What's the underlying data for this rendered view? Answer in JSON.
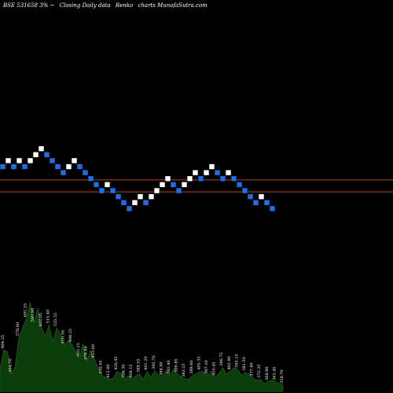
{
  "header": {
    "title": "BSE 531658 3%",
    "separator": "~",
    "subtitle": "Closing Daily data",
    "chart_kind": "Renko",
    "site": "charts MunafaSutra.com"
  },
  "colors": {
    "background": "#000000",
    "up_brick": "#ffffff",
    "down_brick": "#1e6ee8",
    "brick_edge": "#000000",
    "ref_line": "#b34a1a",
    "volume_fill": "#0b3d0b",
    "volume_stroke": "#1e5a1e",
    "label_text": "#ffffff"
  },
  "chart_data": {
    "type": "renko",
    "price_scale": "brick_steps",
    "price_range": [
      -7.6,
      4.2
    ],
    "bricks": [
      {
        "dir": "down",
        "level": 0
      },
      {
        "dir": "up",
        "level": 1
      },
      {
        "dir": "down",
        "level": 0
      },
      {
        "dir": "up",
        "level": 1
      },
      {
        "dir": "down",
        "level": 0
      },
      {
        "dir": "up",
        "level": 1
      },
      {
        "dir": "up",
        "level": 2
      },
      {
        "dir": "up",
        "level": 3
      },
      {
        "dir": "down",
        "level": 2
      },
      {
        "dir": "down",
        "level": 1
      },
      {
        "dir": "down",
        "level": 0
      },
      {
        "dir": "down",
        "level": -1
      },
      {
        "dir": "up",
        "level": 0
      },
      {
        "dir": "up",
        "level": 1
      },
      {
        "dir": "down",
        "level": 0
      },
      {
        "dir": "down",
        "level": -1
      },
      {
        "dir": "down",
        "level": -2
      },
      {
        "dir": "down",
        "level": -3
      },
      {
        "dir": "down",
        "level": -4
      },
      {
        "dir": "up",
        "level": -3
      },
      {
        "dir": "down",
        "level": -4
      },
      {
        "dir": "down",
        "level": -5
      },
      {
        "dir": "down",
        "level": -6
      },
      {
        "dir": "down",
        "level": -7
      },
      {
        "dir": "up",
        "level": -6
      },
      {
        "dir": "up",
        "level": -5
      },
      {
        "dir": "down",
        "level": -6
      },
      {
        "dir": "up",
        "level": -5
      },
      {
        "dir": "up",
        "level": -4
      },
      {
        "dir": "up",
        "level": -3
      },
      {
        "dir": "up",
        "level": -2
      },
      {
        "dir": "down",
        "level": -3
      },
      {
        "dir": "down",
        "level": -4
      },
      {
        "dir": "up",
        "level": -3
      },
      {
        "dir": "up",
        "level": -2
      },
      {
        "dir": "up",
        "level": -1
      },
      {
        "dir": "down",
        "level": -2
      },
      {
        "dir": "up",
        "level": -1
      },
      {
        "dir": "up",
        "level": 0
      },
      {
        "dir": "down",
        "level": -1
      },
      {
        "dir": "down",
        "level": -2
      },
      {
        "dir": "up",
        "level": -1
      },
      {
        "dir": "down",
        "level": -2
      },
      {
        "dir": "down",
        "level": -3
      },
      {
        "dir": "down",
        "level": -4
      },
      {
        "dir": "down",
        "level": -5
      },
      {
        "dir": "down",
        "level": -6
      },
      {
        "dir": "up",
        "level": -5
      },
      {
        "dir": "down",
        "level": -6
      },
      {
        "dir": "down",
        "level": -7
      }
    ],
    "reference_lines": [
      -2.2,
      -4.2
    ],
    "volume": {
      "values": [
        28,
        52,
        50,
        22,
        30,
        68,
        80,
        92,
        112,
        86,
        105,
        80,
        70,
        84,
        62,
        80,
        72,
        58,
        64,
        60,
        50,
        42,
        60,
        38,
        52,
        40,
        30,
        20,
        18,
        15,
        17,
        25,
        23,
        15,
        20,
        15,
        20,
        22,
        15,
        25,
        18,
        26,
        20,
        18,
        26,
        20,
        28,
        22,
        18,
        16,
        15,
        20,
        22,
        25,
        25,
        20,
        25,
        18,
        22,
        30,
        22,
        25,
        30,
        28,
        20,
        24,
        22,
        17,
        14,
        15,
        10,
        12,
        14,
        12,
        10,
        8
      ],
      "labels": [
        {
          "i": 1,
          "text": "494.25"
        },
        {
          "i": 3,
          "text": "454.70"
        },
        {
          "i": 5,
          "text": "578.60"
        },
        {
          "i": 7,
          "text": "601.55"
        },
        {
          "i": 9,
          "text": "593.90"
        },
        {
          "i": 11,
          "text": "622.05"
        },
        {
          "i": 13,
          "text": "515.40"
        },
        {
          "i": 15,
          "text": "555.55"
        },
        {
          "i": 17,
          "text": "520.30"
        },
        {
          "i": 19,
          "text": "498.25"
        },
        {
          "i": 21,
          "text": "465.15"
        },
        {
          "i": 23,
          "text": "478.80"
        },
        {
          "i": 25,
          "text": "453.60"
        },
        {
          "i": 27,
          "text": "430.05"
        },
        {
          "i": 29,
          "text": "412.60"
        },
        {
          "i": 31,
          "text": "426.45"
        },
        {
          "i": 33,
          "text": "398.30"
        },
        {
          "i": 35,
          "text": "408.15"
        },
        {
          "i": 37,
          "text": "389.55"
        },
        {
          "i": 39,
          "text": "401.20"
        },
        {
          "i": 41,
          "text": "395.70"
        },
        {
          "i": 43,
          "text": "384.90"
        },
        {
          "i": 45,
          "text": "392.40"
        },
        {
          "i": 47,
          "text": "399.85"
        },
        {
          "i": 49,
          "text": "383.25"
        },
        {
          "i": 51,
          "text": "389.60"
        },
        {
          "i": 53,
          "text": "405.35"
        },
        {
          "i": 55,
          "text": "397.10"
        },
        {
          "i": 57,
          "text": "410.45"
        },
        {
          "i": 59,
          "text": "386.75"
        },
        {
          "i": 61,
          "text": "402.90"
        },
        {
          "i": 63,
          "text": "393.15"
        },
        {
          "i": 65,
          "text": "381.50"
        },
        {
          "i": 67,
          "text": "377.80"
        },
        {
          "i": 69,
          "text": "372.35"
        },
        {
          "i": 71,
          "text": "368.90"
        },
        {
          "i": 73,
          "text": "363.45"
        },
        {
          "i": 75,
          "text": "358.70"
        }
      ]
    }
  }
}
